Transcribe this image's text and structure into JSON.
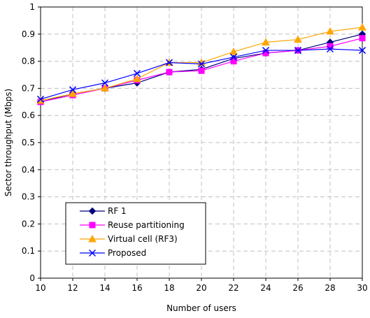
{
  "chart_data": {
    "type": "line",
    "title": "",
    "xlabel": "Number of users",
    "ylabel": "Sector throughput (Mbps)",
    "x": [
      10,
      12,
      14,
      16,
      18,
      20,
      22,
      24,
      26,
      28,
      30
    ],
    "xlim": [
      10,
      30
    ],
    "ylim": [
      0,
      1
    ],
    "xticks": [
      "10",
      "12",
      "14",
      "16",
      "18",
      "20",
      "22",
      "24",
      "26",
      "28",
      "30"
    ],
    "yticks": [
      "0",
      "0.1",
      "0.2",
      "0.3",
      "0.4",
      "0.5",
      "0.6",
      "0.7",
      "0.8",
      "0.9",
      "1"
    ],
    "grid": true,
    "legend_position": "bottom-left",
    "series": [
      {
        "name": "RF 1",
        "color": "#000080",
        "marker": "diamond",
        "values": [
          0.65,
          0.68,
          0.7,
          0.72,
          0.76,
          0.77,
          0.81,
          0.83,
          0.84,
          0.87,
          0.9
        ]
      },
      {
        "name": "Reuse partitioning",
        "color": "#ff00ff",
        "marker": "square",
        "values": [
          0.65,
          0.675,
          0.7,
          0.73,
          0.76,
          0.765,
          0.8,
          0.83,
          0.84,
          0.855,
          0.885
        ]
      },
      {
        "name": "Virtual cell (RF3)",
        "color": "#ffa500",
        "marker": "triangle",
        "values": [
          0.655,
          0.68,
          0.7,
          0.735,
          0.795,
          0.795,
          0.835,
          0.87,
          0.88,
          0.91,
          0.925
        ]
      },
      {
        "name": "Proposed",
        "color": "#0000ff",
        "marker": "x",
        "values": [
          0.66,
          0.695,
          0.72,
          0.755,
          0.795,
          0.79,
          0.815,
          0.84,
          0.84,
          0.845,
          0.84
        ]
      }
    ]
  }
}
